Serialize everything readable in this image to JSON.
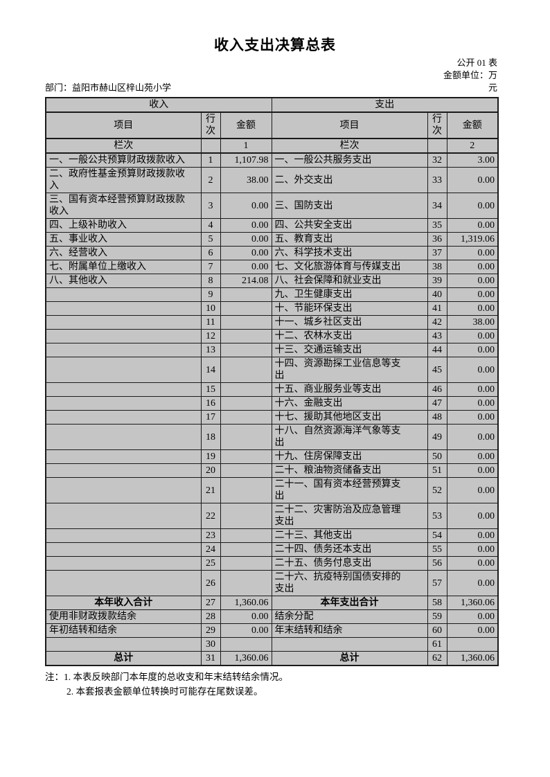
{
  "page": {
    "title": "收入支出决算总表",
    "meta": {
      "table_label": "公开 01 表",
      "unit_line1": "金额单位：万",
      "unit_line2": "元"
    },
    "department": "部门：益阳市赫山区梓山苑小学"
  },
  "table": {
    "income_header": "收入",
    "expense_header": "支出",
    "col_item": "项目",
    "col_rowno": "行\n次",
    "col_amount": "金额",
    "lanci_label": "栏次",
    "income_col_index": "1",
    "expense_col_index": "2",
    "rows": [
      {
        "income_item": "一、一般公共预算财政拨款收入",
        "income_row": "1",
        "income_amount": "1,107.98",
        "expense_item": "一、一般公共服务支出",
        "expense_row": "32",
        "expense_amount": "3.00"
      },
      {
        "income_item": "二、政府性基金预算财政拨款收\n入",
        "income_row": "2",
        "income_amount": "38.00",
        "expense_item": "二、外交支出",
        "expense_row": "33",
        "expense_amount": "0.00"
      },
      {
        "income_item": "三、国有资本经营预算财政拨款\n收入",
        "income_row": "3",
        "income_amount": "0.00",
        "expense_item": "三、国防支出",
        "expense_row": "34",
        "expense_amount": "0.00"
      },
      {
        "income_item": "四、上级补助收入",
        "income_row": "4",
        "income_amount": "0.00",
        "expense_item": "四、公共安全支出",
        "expense_row": "35",
        "expense_amount": "0.00"
      },
      {
        "income_item": "五、事业收入",
        "income_row": "5",
        "income_amount": "0.00",
        "expense_item": "五、教育支出",
        "expense_row": "36",
        "expense_amount": "1,319.06"
      },
      {
        "income_item": "六、经营收入",
        "income_row": "6",
        "income_amount": "0.00",
        "expense_item": "六、科学技术支出",
        "expense_row": "37",
        "expense_amount": "0.00"
      },
      {
        "income_item": "七、附属单位上缴收入",
        "income_row": "7",
        "income_amount": "0.00",
        "expense_item": "七、文化旅游体育与传媒支出",
        "expense_row": "38",
        "expense_amount": "0.00"
      },
      {
        "income_item": "八、其他收入",
        "income_row": "8",
        "income_amount": "214.08",
        "expense_item": "八、社会保障和就业支出",
        "expense_row": "39",
        "expense_amount": "0.00"
      },
      {
        "income_item": "",
        "income_row": "9",
        "income_amount": "",
        "expense_item": "九、卫生健康支出",
        "expense_row": "40",
        "expense_amount": "0.00"
      },
      {
        "income_item": "",
        "income_row": "10",
        "income_amount": "",
        "expense_item": "十、节能环保支出",
        "expense_row": "41",
        "expense_amount": "0.00"
      },
      {
        "income_item": "",
        "income_row": "11",
        "income_amount": "",
        "expense_item": "十一、城乡社区支出",
        "expense_row": "42",
        "expense_amount": "38.00"
      },
      {
        "income_item": "",
        "income_row": "12",
        "income_amount": "",
        "expense_item": "十二、农林水支出",
        "expense_row": "43",
        "expense_amount": "0.00"
      },
      {
        "income_item": "",
        "income_row": "13",
        "income_amount": "",
        "expense_item": "十三、交通运输支出",
        "expense_row": "44",
        "expense_amount": "0.00"
      },
      {
        "income_item": "",
        "income_row": "14",
        "income_amount": "",
        "expense_item": "十四、资源勘探工业信息等支\n出",
        "expense_row": "45",
        "expense_amount": "0.00"
      },
      {
        "income_item": "",
        "income_row": "15",
        "income_amount": "",
        "expense_item": "十五、商业服务业等支出",
        "expense_row": "46",
        "expense_amount": "0.00"
      },
      {
        "income_item": "",
        "income_row": "16",
        "income_amount": "",
        "expense_item": "十六、金融支出",
        "expense_row": "47",
        "expense_amount": "0.00"
      },
      {
        "income_item": "",
        "income_row": "17",
        "income_amount": "",
        "expense_item": "十七、援助其他地区支出",
        "expense_row": "48",
        "expense_amount": "0.00"
      },
      {
        "income_item": "",
        "income_row": "18",
        "income_amount": "",
        "expense_item": "十八、自然资源海洋气象等支\n出",
        "expense_row": "49",
        "expense_amount": "0.00"
      },
      {
        "income_item": "",
        "income_row": "19",
        "income_amount": "",
        "expense_item": "十九、住房保障支出",
        "expense_row": "50",
        "expense_amount": "0.00"
      },
      {
        "income_item": "",
        "income_row": "20",
        "income_amount": "",
        "expense_item": "二十、粮油物资储备支出",
        "expense_row": "51",
        "expense_amount": "0.00"
      },
      {
        "income_item": "",
        "income_row": "21",
        "income_amount": "",
        "expense_item": "二十一、国有资本经营预算支\n出",
        "expense_row": "52",
        "expense_amount": "0.00"
      },
      {
        "income_item": "",
        "income_row": "22",
        "income_amount": "",
        "expense_item": "二十二、灾害防治及应急管理\n支出",
        "expense_row": "53",
        "expense_amount": "0.00"
      },
      {
        "income_item": "",
        "income_row": "23",
        "income_amount": "",
        "expense_item": "二十三、其他支出",
        "expense_row": "54",
        "expense_amount": "0.00"
      },
      {
        "income_item": "",
        "income_row": "24",
        "income_amount": "",
        "expense_item": "二十四、债务还本支出",
        "expense_row": "55",
        "expense_amount": "0.00"
      },
      {
        "income_item": "",
        "income_row": "25",
        "income_amount": "",
        "expense_item": "二十五、债务付息支出",
        "expense_row": "56",
        "expense_amount": "0.00"
      },
      {
        "income_item": "",
        "income_row": "26",
        "income_amount": "",
        "expense_item": "二十六、抗疫特别国债安排的\n支出",
        "expense_row": "57",
        "expense_amount": "0.00"
      },
      {
        "income_item": "本年收入合计",
        "income_row": "27",
        "income_amount": "1,360.06",
        "expense_item": "本年支出合计",
        "expense_row": "58",
        "expense_amount": "1,360.06",
        "emphasis": true
      },
      {
        "income_item": "使用非财政拨款结余",
        "income_row": "28",
        "income_amount": "0.00",
        "expense_item": "结余分配",
        "expense_row": "59",
        "expense_amount": "0.00"
      },
      {
        "income_item": "年初结转和结余",
        "income_row": "29",
        "income_amount": "0.00",
        "expense_item": "年末结转和结余",
        "expense_row": "60",
        "expense_amount": "0.00"
      },
      {
        "income_item": "",
        "income_row": "30",
        "income_amount": "",
        "expense_item": "",
        "expense_row": "61",
        "expense_amount": ""
      },
      {
        "income_item": "总计",
        "income_row": "31",
        "income_amount": "1,360.06",
        "expense_item": "总计",
        "expense_row": "62",
        "expense_amount": "1,360.06",
        "emphasis": true
      }
    ]
  },
  "notes": {
    "prefix": "注：",
    "item1": "1. 本表反映部门本年度的总收支和年末结转结余情况。",
    "item2": "2. 本套报表金额单位转换时可能存在尾数误差。"
  }
}
